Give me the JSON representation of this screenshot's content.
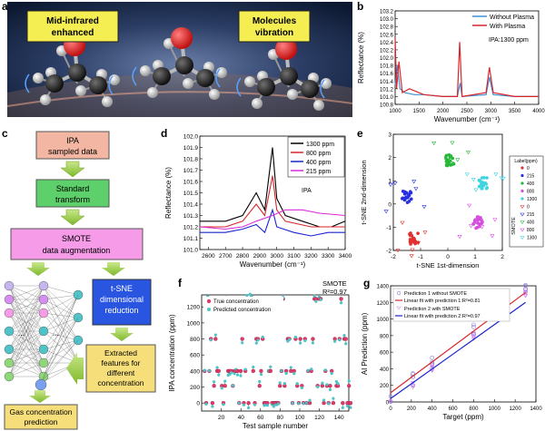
{
  "panel_labels": {
    "a": "a",
    "b": "b",
    "c": "c",
    "d": "d",
    "e": "e",
    "f": "f",
    "g": "g"
  },
  "panel_a": {
    "callout_left": [
      "Mid-infrared",
      "enhanced"
    ],
    "callout_right": [
      "Molecules",
      "vibration"
    ],
    "colors": {
      "bg_dark": "#1a2a44",
      "callout": "#f5ee52",
      "oxygen": "#e8232a",
      "carbon": "#2b2b2b",
      "hydrogen": "#e8e8e8"
    }
  },
  "panel_b": {
    "ylabel": "Reflectance (%)",
    "xlabel": "Wavenumber (cm⁻¹)",
    "annotation": "IPA:1300 ppm",
    "legend": [
      "Without Plasma",
      "With Plasma"
    ],
    "yticks": [
      "103.2",
      "103.0",
      "102.8",
      "102.6",
      "102.4",
      "102.2",
      "102.0",
      "101.8",
      "101.6",
      "101.4",
      "101.2",
      "101.0",
      "100.8"
    ],
    "xticks": [
      "1000",
      "1500",
      "2000",
      "2500",
      "3000",
      "3500",
      "4000"
    ],
    "chart_data": {
      "type": "line",
      "x_range": [
        1000,
        4000
      ],
      "ylim": [
        100.8,
        103.2
      ],
      "series": [
        {
          "name": "Without Plasma",
          "color": "#3d8fd9",
          "points": [
            [
              1000,
              101.3
            ],
            [
              1050,
              101.8
            ],
            [
              1100,
              101.2
            ],
            [
              1200,
              101.1
            ],
            [
              1400,
              101.05
            ],
            [
              1600,
              101.05
            ],
            [
              2000,
              101.0
            ],
            [
              2300,
              101.0
            ],
            [
              2360,
              101.35
            ],
            [
              2400,
              101.0
            ],
            [
              2900,
              101.05
            ],
            [
              2970,
              101.5
            ],
            [
              3050,
              101.05
            ],
            [
              3500,
              101.0
            ],
            [
              4000,
              101.0
            ]
          ]
        },
        {
          "name": "With Plasma",
          "color": "#d8262b",
          "points": [
            [
              1000,
              102.5
            ],
            [
              1030,
              101.2
            ],
            [
              1080,
              101.9
            ],
            [
              1150,
              101.1
            ],
            [
              1300,
              101.2
            ],
            [
              1600,
              101.05
            ],
            [
              2000,
              101.0
            ],
            [
              2300,
              101.0
            ],
            [
              2350,
              102.4
            ],
            [
              2400,
              101.0
            ],
            [
              2900,
              101.1
            ],
            [
              2970,
              101.75
            ],
            [
              3050,
              101.1
            ],
            [
              3500,
              101.0
            ],
            [
              4000,
              101.0
            ]
          ]
        }
      ]
    }
  },
  "panel_c": {
    "boxes": {
      "ipa": [
        "IPA",
        "sampled data"
      ],
      "std": [
        "Standard",
        "transform"
      ],
      "smote": [
        "SMOTE",
        "data augmentation"
      ],
      "tsne": [
        "t-SNE",
        "dimensional",
        "reduction"
      ],
      "extract": [
        "Extracted",
        "features for",
        "different",
        "concentration"
      ],
      "pred": [
        "Gas concentration",
        "prediction"
      ]
    },
    "colors": {
      "ipa": "#f3b6a3",
      "std": "#5dd06b",
      "smote": "#f59be8",
      "tsne": "#2955e0",
      "extract": "#f6df7a",
      "pred": "#f6df7a",
      "arrow": "#a6d44a"
    }
  },
  "panel_d": {
    "ylabel": "Reflectance (%)",
    "xlabel": "Wavenumber (cm⁻¹)",
    "annotation": "IPA",
    "yticks": [
      "102.0",
      "101.9",
      "101.8",
      "101.7",
      "101.6",
      "101.5",
      "101.4",
      "101.3",
      "101.2",
      "101.1",
      "101.0"
    ],
    "xticks": [
      "2600",
      "2700",
      "2800",
      "2900",
      "3000",
      "3100",
      "3200",
      "3300",
      "3400"
    ],
    "chart_data": {
      "type": "line",
      "x_range": [
        2550,
        3400
      ],
      "ylim": [
        101.0,
        102.0
      ],
      "series": [
        {
          "name": "1300 ppm",
          "color": "#000000",
          "points": [
            [
              2550,
              101.25
            ],
            [
              2700,
              101.25
            ],
            [
              2800,
              101.3
            ],
            [
              2880,
              101.5
            ],
            [
              2930,
              101.35
            ],
            [
              2975,
              101.9
            ],
            [
              3000,
              101.45
            ],
            [
              3050,
              101.3
            ],
            [
              3150,
              101.25
            ],
            [
              3250,
              101.2
            ],
            [
              3320,
              101.2
            ],
            [
              3400,
              101.25
            ]
          ]
        },
        {
          "name": "800 ppm",
          "color": "#d8262b",
          "points": [
            [
              2550,
              101.2
            ],
            [
              2700,
              101.2
            ],
            [
              2800,
              101.25
            ],
            [
              2880,
              101.4
            ],
            [
              2930,
              101.3
            ],
            [
              2975,
              101.65
            ],
            [
              3000,
              101.35
            ],
            [
              3050,
              101.25
            ],
            [
              3200,
              101.2
            ],
            [
              3300,
              101.2
            ],
            [
              3400,
              101.2
            ]
          ]
        },
        {
          "name": "400 ppm",
          "color": "#1a22d0",
          "points": [
            [
              2550,
              101.15
            ],
            [
              2700,
              101.15
            ],
            [
              2800,
              101.18
            ],
            [
              2880,
              101.22
            ],
            [
              2930,
              101.15
            ],
            [
              2975,
              101.35
            ],
            [
              3000,
              101.2
            ],
            [
              3100,
              101.15
            ],
            [
              3200,
              101.12
            ],
            [
              3300,
              101.15
            ],
            [
              3400,
              101.15
            ]
          ]
        },
        {
          "name": "215 ppm",
          "color": "#d92bd9",
          "points": [
            [
              2550,
              101.2
            ],
            [
              2700,
              101.18
            ],
            [
              2800,
              101.2
            ],
            [
              2880,
              101.25
            ],
            [
              2975,
              101.3
            ],
            [
              3050,
              101.35
            ],
            [
              3150,
              101.35
            ],
            [
              3250,
              101.32
            ],
            [
              3400,
              101.3
            ]
          ]
        }
      ]
    }
  },
  "panel_e": {
    "xlabel": "t-SNE 1st-dimension",
    "ylabel": "t-SNE 2nd-dimension",
    "legend_title": "Label(ppm)",
    "legend_group": "SMOTE",
    "legend_items": [
      "0",
      "215",
      "400",
      "800",
      "1300",
      "0",
      "215",
      "400",
      "800",
      "1300"
    ],
    "xticks": [
      "-2",
      "-1",
      "0",
      "1",
      "2"
    ],
    "yticks": [
      "3",
      "2",
      "1",
      "0",
      "-1",
      "-2"
    ],
    "chart_data": {
      "type": "scatter",
      "xlim": [
        -2,
        2
      ],
      "ylim": [
        -2,
        3
      ],
      "clusters": [
        {
          "label": "0",
          "color": "#e03030",
          "center": [
            -1.25,
            -1.5
          ]
        },
        {
          "label": "215",
          "color": "#2730e0",
          "center": [
            -1.5,
            0.3
          ]
        },
        {
          "label": "400",
          "color": "#2ab83a",
          "center": [
            0.1,
            1.9
          ]
        },
        {
          "label": "800",
          "color": "#d64de0",
          "center": [
            1.1,
            -0.8
          ]
        },
        {
          "label": "1300",
          "color": "#3ed4e0",
          "center": [
            1.3,
            0.9
          ]
        }
      ]
    }
  },
  "panel_f": {
    "ylabel": "IPA concentration (ppm)",
    "xlabel": "Test sample number",
    "legend": [
      "True concentration",
      "Predicted concentration"
    ],
    "annotation": [
      "SMOTE",
      "R²=0.97"
    ],
    "yticks": [
      "1200",
      "1000",
      "800",
      "600",
      "400",
      "200",
      "0"
    ],
    "xticks": [
      "20",
      "40",
      "60",
      "80",
      "100",
      "120",
      "140"
    ],
    "chart_data": {
      "type": "scatter",
      "xlim": [
        0,
        150
      ],
      "ylim": [
        -100,
        1350
      ],
      "levels": [
        0,
        215,
        400,
        800,
        1300
      ],
      "series": [
        {
          "name": "True concentration",
          "color": "#e23a6a"
        },
        {
          "name": "Predicted concentration",
          "color": "#4fc3c8"
        }
      ]
    }
  },
  "panel_g": {
    "ylabel": "AI Prediction (ppm)",
    "xlabel": "Target (ppm)",
    "legend": [
      "Prediction 1 without SMOTE",
      "Linear fit with prediction 1:R²=0.81",
      "Prediction 2 with SMOTE",
      "Linear fit with prediction 2:R²=0.97"
    ],
    "yticks": [
      "1400",
      "1200",
      "1000",
      "800",
      "600",
      "400",
      "200",
      "0"
    ],
    "xticks": [
      "0",
      "200",
      "400",
      "600",
      "800",
      "1000",
      "1200",
      "1400"
    ],
    "chart_data": {
      "type": "scatter",
      "xlim": [
        0,
        1400
      ],
      "ylim": [
        0,
        1400
      ],
      "targets": [
        0,
        215,
        400,
        800,
        1300
      ],
      "fit1": {
        "name": "Linear fit with prediction 1:R²=0.81",
        "color": "#d8262b",
        "points": [
          [
            0,
            110
          ],
          [
            1300,
            1320
          ]
        ]
      },
      "fit2": {
        "name": "Linear fit with prediction 2:R²=0.97",
        "color": "#1a22d0",
        "points": [
          [
            0,
            40
          ],
          [
            1300,
            1200
          ]
        ]
      }
    }
  }
}
